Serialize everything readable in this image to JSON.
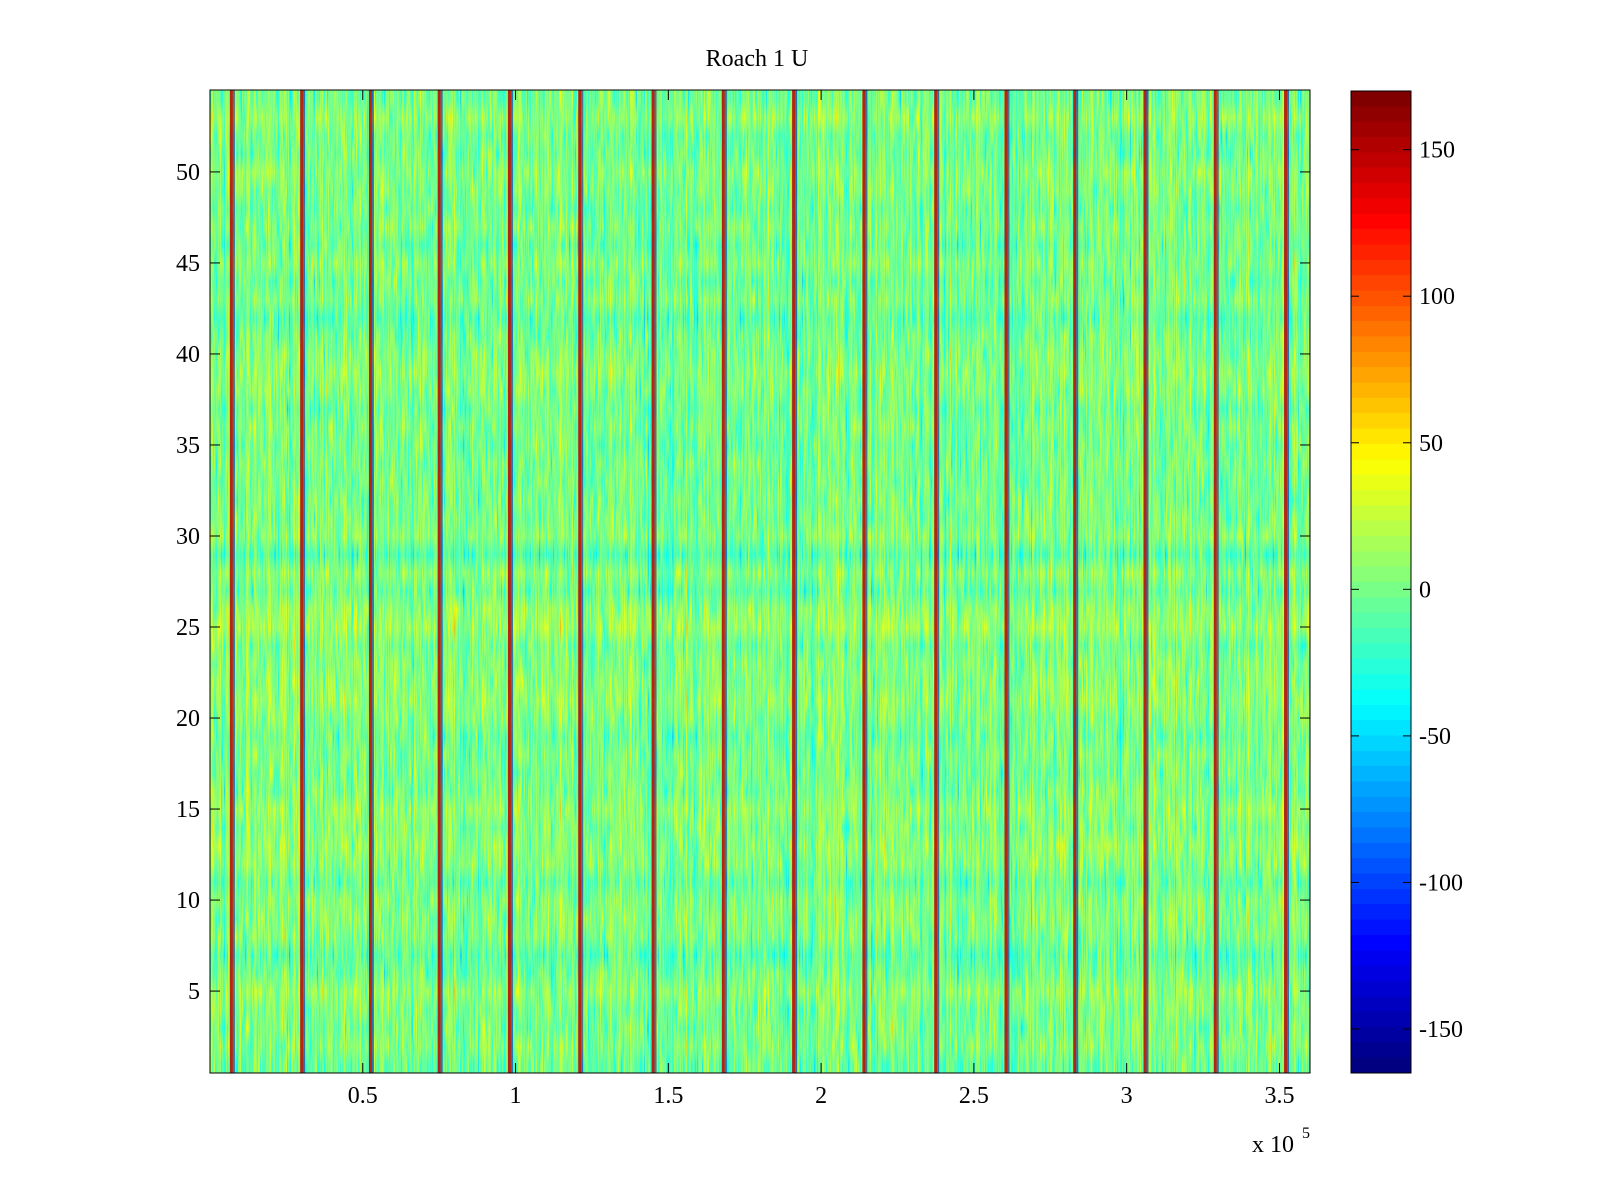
{
  "chart_data": {
    "type": "heatmap",
    "title": "Roach 1 U",
    "xlabel": "",
    "ylabel": "",
    "x_exponent_label": "x 10",
    "x_exponent_power": "5",
    "xlim": [
      0,
      360000
    ],
    "ylim": [
      0.5,
      54.5
    ],
    "x_ticks": [
      {
        "value": 50000,
        "label": "0.5"
      },
      {
        "value": 100000,
        "label": "1"
      },
      {
        "value": 150000,
        "label": "1.5"
      },
      {
        "value": 200000,
        "label": "2"
      },
      {
        "value": 250000,
        "label": "2.5"
      },
      {
        "value": 300000,
        "label": "3"
      },
      {
        "value": 350000,
        "label": "3.5"
      }
    ],
    "y_ticks": [
      {
        "value": 5,
        "label": "5"
      },
      {
        "value": 10,
        "label": "10"
      },
      {
        "value": 15,
        "label": "15"
      },
      {
        "value": 20,
        "label": "20"
      },
      {
        "value": 25,
        "label": "25"
      },
      {
        "value": 30,
        "label": "30"
      },
      {
        "value": 35,
        "label": "35"
      },
      {
        "value": 40,
        "label": "40"
      },
      {
        "value": 45,
        "label": "45"
      },
      {
        "value": 50,
        "label": "50"
      }
    ],
    "rows": 54,
    "colormap": "jet",
    "background_value_mean": 0,
    "background_value_spread": 60,
    "periodic_stripes": {
      "description": "vertical lines alternating between high (red) and low (blue) values",
      "positions": [
        7000,
        30000,
        52500,
        75000,
        98000,
        121000,
        145000,
        168000,
        191000,
        214000,
        237500,
        260500,
        283000,
        306000,
        329000,
        352000
      ],
      "high_value": 150,
      "low_value": -150
    },
    "colorbar": {
      "min": -165,
      "max": 170,
      "ticks": [
        {
          "value": 150,
          "label": "150"
        },
        {
          "value": 100,
          "label": "100"
        },
        {
          "value": 50,
          "label": "50"
        },
        {
          "value": 0,
          "label": "0"
        },
        {
          "value": -50,
          "label": "-50"
        },
        {
          "value": -100,
          "label": "-100"
        },
        {
          "value": -150,
          "label": "-150"
        }
      ]
    }
  }
}
